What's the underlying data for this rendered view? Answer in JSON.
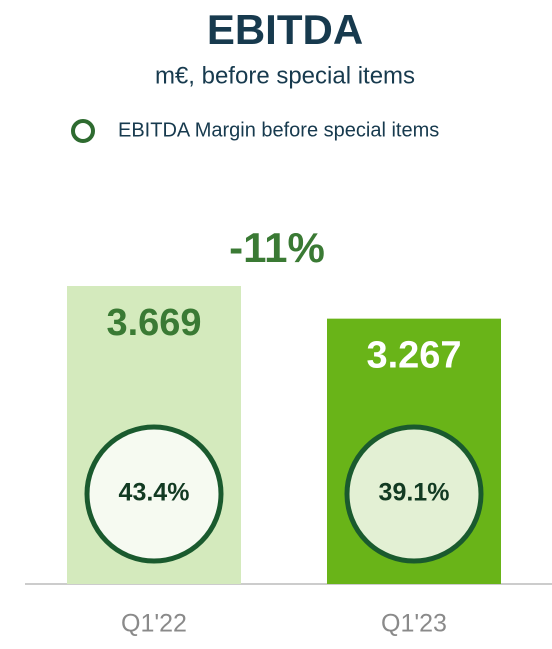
{
  "chart_data": {
    "type": "bar",
    "title": "EBITDA",
    "subtitle": "m€, before special items",
    "categories": [
      "Q1'22",
      "Q1'23"
    ],
    "values": [
      3669,
      3267
    ],
    "value_labels": [
      "3.669",
      "3.267"
    ],
    "colors": [
      "#d4eabd",
      "#69b418"
    ],
    "label_colors": [
      "#3a7a34",
      "#ffffff"
    ],
    "margin": {
      "name": "EBITDA Margin before special items",
      "values": [
        43.4,
        39.1
      ],
      "value_labels": [
        "43.4%",
        "39.1%"
      ],
      "color": "#1a5a2e",
      "fills": [
        "#f6faf1",
        "#e3f0d4"
      ]
    },
    "annotation": "-11%"
  }
}
